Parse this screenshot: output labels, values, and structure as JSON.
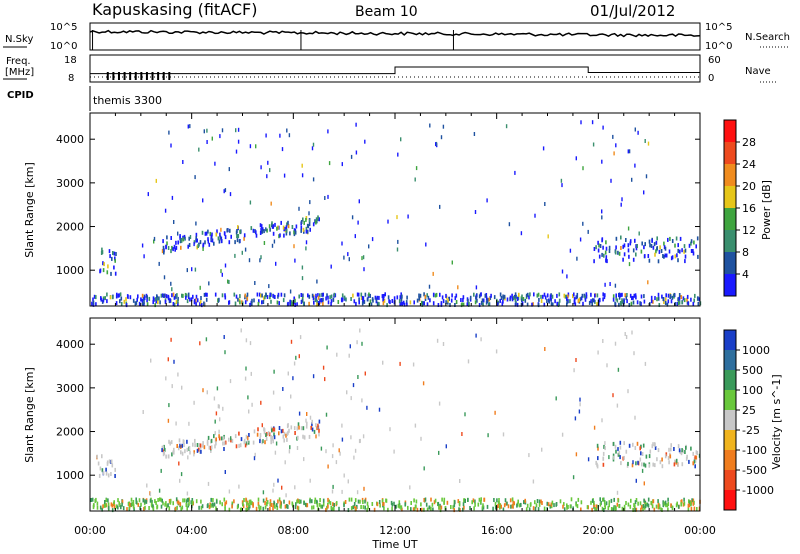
{
  "header": {
    "station": "Kapuskasing (fitACF)",
    "beam": "Beam 10",
    "date": "01/Jul/2012"
  },
  "top_panels": {
    "nsky_label": "N.Sky",
    "nsky_ticks": [
      "10^5",
      "10^0"
    ],
    "nsearch_label": "N.Search",
    "nsearch_ticks": [
      "10^5",
      "10^0"
    ],
    "freq_label_1": "Freq.",
    "freq_label_2": "[MHz]",
    "freq_ticks": [
      "18",
      "8"
    ],
    "nave_label": "Nave",
    "nave_ticks": [
      "60",
      "0"
    ],
    "cpid_label": "CPID",
    "cpid_text": "themis 3300"
  },
  "panels": {
    "ylabel": "Slant Range [km]",
    "xlabel": "Time UT",
    "x_ticks": [
      "00:00",
      "04:00",
      "08:00",
      "12:00",
      "16:00",
      "20:00",
      "00:00"
    ],
    "y_ticks": [
      "1000",
      "2000",
      "3000",
      "4000"
    ],
    "power_label": "Power [dB]",
    "velocity_label": "Velocity [m s^-1]"
  },
  "power_scale": {
    "ticks": [
      "4",
      "8",
      "12",
      "16",
      "20",
      "24",
      "28"
    ],
    "colors": [
      "#1a1aff",
      "#1f52a0",
      "#3a8f6e",
      "#3fa53f",
      "#e6c619",
      "#f08c1e",
      "#ee4a1e",
      "#ff1010"
    ]
  },
  "velocity_scale": {
    "ticks": [
      "1000",
      "500",
      "100",
      "25",
      "-25",
      "-100",
      "-500",
      "-1000"
    ],
    "colors": [
      "#1a3fc8",
      "#2e6f9e",
      "#3a9a5a",
      "#69c83c",
      "#c8c8c8",
      "#f0b41e",
      "#f07d1e",
      "#ee4a1e",
      "#ff1010"
    ]
  },
  "chart_data": {
    "type": "heatmap",
    "title": "Kapuskasing (fitACF)",
    "xlabel": "Time UT",
    "ylabel": "Slant Range [km]",
    "xlim": [
      "00:00",
      "24:00"
    ],
    "ylim": [
      180,
      4600
    ],
    "series": [
      {
        "name": "Power [dB]",
        "clim": [
          0,
          30
        ],
        "regions": [
          {
            "t_start": 0.2,
            "t_end": 1.0,
            "range_start": 900,
            "range_end": 1500,
            "level": 10
          },
          {
            "t_start": 2.8,
            "t_end": 9.0,
            "range_start": 1400,
            "range_end": 2250,
            "level": 12
          },
          {
            "t_start": 19.8,
            "t_end": 24.0,
            "range_start": 1200,
            "range_end": 1750,
            "level": 9
          },
          {
            "t_start": 0.0,
            "t_end": 24.0,
            "range_start": 200,
            "range_end": 450,
            "level": 6
          }
        ]
      },
      {
        "name": "Velocity [m s^-1]",
        "clim": [
          -1000,
          1000
        ],
        "regions": [
          {
            "t_start": 0.2,
            "t_end": 1.0,
            "range_start": 900,
            "range_end": 1500,
            "level": 0
          },
          {
            "t_start": 2.8,
            "t_end": 9.0,
            "range_start": 1400,
            "range_end": 2250,
            "level": 0
          },
          {
            "t_start": 19.8,
            "t_end": 24.0,
            "range_start": 1200,
            "range_end": 1750,
            "level": 0
          },
          {
            "t_start": 0.0,
            "t_end": 24.0,
            "range_start": 200,
            "range_end": 450,
            "level": 60
          }
        ]
      }
    ],
    "frequency_MHz": [
      {
        "t_start": 0.0,
        "t_end": 12.0,
        "value": 10
      },
      {
        "t_start": 12.0,
        "t_end": 19.6,
        "value": 13
      },
      {
        "t_start": 19.6,
        "t_end": 24.0,
        "value": 10.5
      }
    ]
  }
}
